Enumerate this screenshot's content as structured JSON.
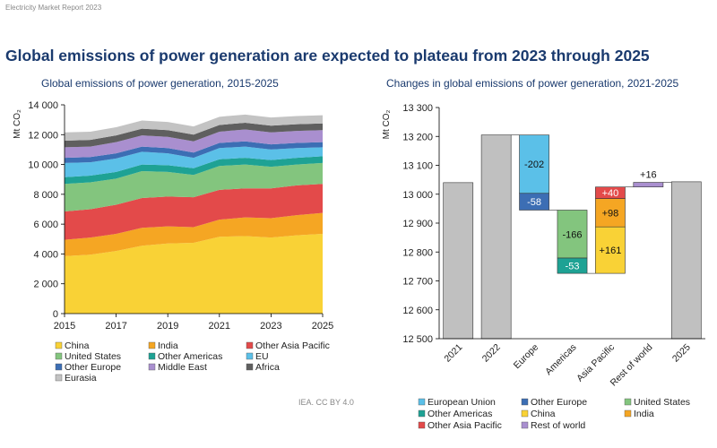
{
  "header": {
    "report": "Electricity Market Report 2023"
  },
  "title": "Global emissions of power generation are expected to plateau from 2023 through 2025",
  "credit": "IEA. CC BY 4.0",
  "chart_data": [
    {
      "type": "area",
      "title": "Global emissions of power generation, 2015-2025",
      "ylabel": "Mt CO₂",
      "ylim": [
        0,
        14000
      ],
      "yticks": [
        0,
        2000,
        4000,
        6000,
        8000,
        10000,
        12000,
        14000
      ],
      "ytick_labels": [
        "0",
        "2 000",
        "4 000",
        "6 000",
        "8 000",
        "10 000",
        "12 000",
        "14 000"
      ],
      "x": [
        2015,
        2016,
        2017,
        2018,
        2019,
        2020,
        2021,
        2022,
        2023,
        2024,
        2025
      ],
      "xticks": [
        2015,
        2017,
        2019,
        2021,
        2023,
        2025
      ],
      "legend_position": "bottom",
      "series": [
        {
          "name": "China",
          "color": "#f9d236",
          "values": [
            3850,
            3950,
            4200,
            4550,
            4700,
            4750,
            5150,
            5200,
            5100,
            5250,
            5350
          ]
        },
        {
          "name": "India",
          "color": "#f5a623",
          "values": [
            1100,
            1150,
            1150,
            1200,
            1150,
            1050,
            1150,
            1250,
            1300,
            1350,
            1400
          ]
        },
        {
          "name": "Other Asia Pacific",
          "color": "#e34a4a",
          "values": [
            1900,
            1900,
            1950,
            2000,
            2000,
            2000,
            2000,
            1950,
            2000,
            2000,
            1950
          ]
        },
        {
          "name": "United States",
          "color": "#83c57e",
          "values": [
            1850,
            1800,
            1750,
            1800,
            1650,
            1500,
            1600,
            1600,
            1450,
            1400,
            1400
          ]
        },
        {
          "name": "Other Americas",
          "color": "#1ea294",
          "values": [
            450,
            450,
            450,
            450,
            450,
            450,
            450,
            450,
            450,
            450,
            450
          ]
        },
        {
          "name": "EU",
          "color": "#5bc0e8",
          "values": [
            950,
            900,
            900,
            850,
            800,
            700,
            750,
            750,
            700,
            650,
            600
          ]
        },
        {
          "name": "Other Europe",
          "color": "#3c6eb4",
          "values": [
            350,
            350,
            350,
            350,
            350,
            350,
            350,
            350,
            350,
            350,
            350
          ]
        },
        {
          "name": "Middle East",
          "color": "#a98fcf",
          "values": [
            700,
            700,
            750,
            750,
            750,
            750,
            750,
            800,
            800,
            800,
            800
          ]
        },
        {
          "name": "Africa",
          "color": "#5f5f5f",
          "values": [
            450,
            450,
            450,
            450,
            450,
            450,
            450,
            450,
            450,
            450,
            450
          ]
        },
        {
          "name": "Eurasia",
          "color": "#c3c3c3",
          "values": [
            550,
            550,
            550,
            550,
            550,
            550,
            550,
            550,
            550,
            550,
            550
          ]
        }
      ]
    },
    {
      "type": "waterfall",
      "title": "Changes in global emissions of power generation, 2021-2025",
      "ylabel": "Mt CO₂",
      "ylim": [
        12500,
        13300
      ],
      "yticks": [
        12500,
        12600,
        12700,
        12800,
        12900,
        13000,
        13100,
        13200,
        13300
      ],
      "ytick_labels": [
        "12 500",
        "12 600",
        "12 700",
        "12 800",
        "12 900",
        "13 000",
        "13 100",
        "13 200",
        "13 300"
      ],
      "categories": [
        "2021",
        "2022",
        "Europe",
        "Americas",
        "Asia Pacific",
        "Rest of world",
        "2025"
      ],
      "totals": {
        "2021": 13040,
        "2022": 13205,
        "2025": 13043
      },
      "steps": [
        {
          "category": "Europe",
          "series": "European Union",
          "delta": -202,
          "label": "-202"
        },
        {
          "category": "Europe",
          "series": "Other Europe",
          "delta": -58,
          "label": "-58"
        },
        {
          "category": "Americas",
          "series": "United States",
          "delta": -166,
          "label": "-166"
        },
        {
          "category": "Americas",
          "series": "Other Americas",
          "delta": -53,
          "label": "-53"
        },
        {
          "category": "Asia Pacific",
          "series": "China",
          "delta": 161,
          "label": "+161"
        },
        {
          "category": "Asia Pacific",
          "series": "India",
          "delta": 98,
          "label": "+98"
        },
        {
          "category": "Asia Pacific",
          "series": "Other Asia Pacific",
          "delta": 40,
          "label": "+40"
        },
        {
          "category": "Rest of world",
          "series": "Rest of world",
          "delta": 16,
          "label": "+16"
        }
      ],
      "legend_position": "bottom",
      "legend": [
        {
          "name": "European Union",
          "color": "#5bc0e8"
        },
        {
          "name": "Other Europe",
          "color": "#3c6eb4"
        },
        {
          "name": "United States",
          "color": "#83c57e"
        },
        {
          "name": "Other Americas",
          "color": "#1ea294"
        },
        {
          "name": "China",
          "color": "#f9d236"
        },
        {
          "name": "India",
          "color": "#f5a623"
        },
        {
          "name": "Other Asia Pacific",
          "color": "#e34a4a"
        },
        {
          "name": "Rest of world",
          "color": "#a98fcf"
        }
      ],
      "total_color": "#c0c0c0"
    }
  ]
}
